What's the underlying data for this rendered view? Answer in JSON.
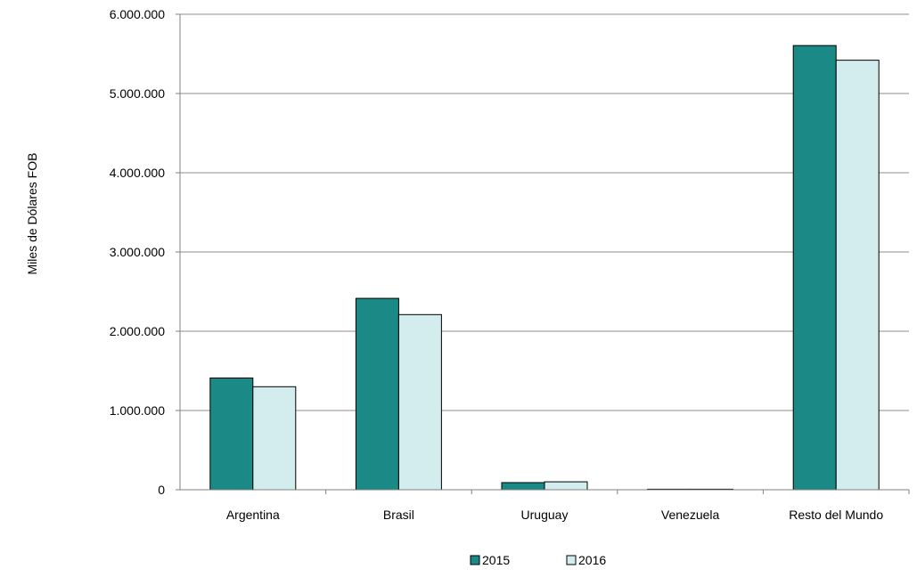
{
  "chart_data": {
    "type": "bar",
    "categories": [
      "Argentina",
      "Brasil",
      "Uruguay",
      "Venezuela",
      "Resto del Mundo"
    ],
    "series": [
      {
        "name": "2015",
        "color": "#1b8a86",
        "values": [
          1410000,
          2415000,
          90000,
          3000,
          5605000
        ]
      },
      {
        "name": "2016",
        "color": "#d3ecee",
        "values": [
          1300000,
          2210000,
          100000,
          2000,
          5420000
        ]
      }
    ],
    "ylabel": "Miles de Dólares FOB",
    "ylim": [
      0,
      6000000
    ],
    "yticks": [
      0,
      1000000,
      2000000,
      3000000,
      4000000,
      5000000,
      6000000
    ],
    "ytick_labels": [
      "0",
      "1.000.000",
      "2.000.000",
      "3.000.000",
      "4.000.000",
      "5.000.000",
      "6.000.000"
    ],
    "grid": true,
    "legend_position": "bottom"
  }
}
